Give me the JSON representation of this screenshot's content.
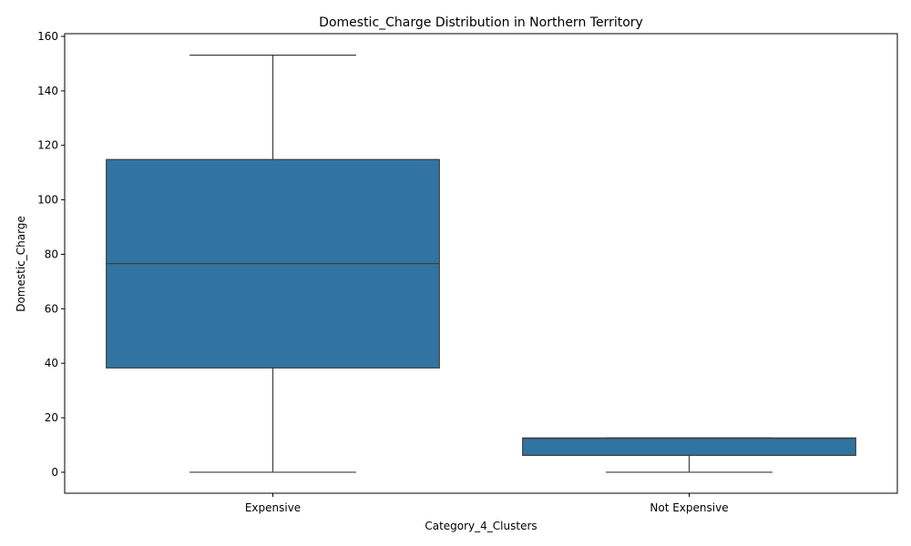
{
  "chart_data": {
    "type": "box",
    "title": "Domestic_Charge Distribution in Northern Territory",
    "xlabel": "Category_4_Clusters",
    "ylabel": "Domestic_Charge",
    "ylim": [
      -7.7,
      161
    ],
    "yticks": [
      0,
      20,
      40,
      60,
      80,
      100,
      120,
      140,
      160
    ],
    "categories": [
      "Expensive",
      "Not Expensive"
    ],
    "boxes": [
      {
        "category": "Expensive",
        "whisker_low": 0,
        "q1": 38.3,
        "median": 76.6,
        "q3": 114.8,
        "whisker_high": 153.1
      },
      {
        "category": "Not Expensive",
        "whisker_low": 0,
        "q1": 6.2,
        "median": 12.4,
        "q3": 12.6,
        "whisker_high": 12.6
      }
    ],
    "colors": {
      "box_fill": "#3274a1",
      "line": "#3f3f3f"
    },
    "grid": false
  }
}
